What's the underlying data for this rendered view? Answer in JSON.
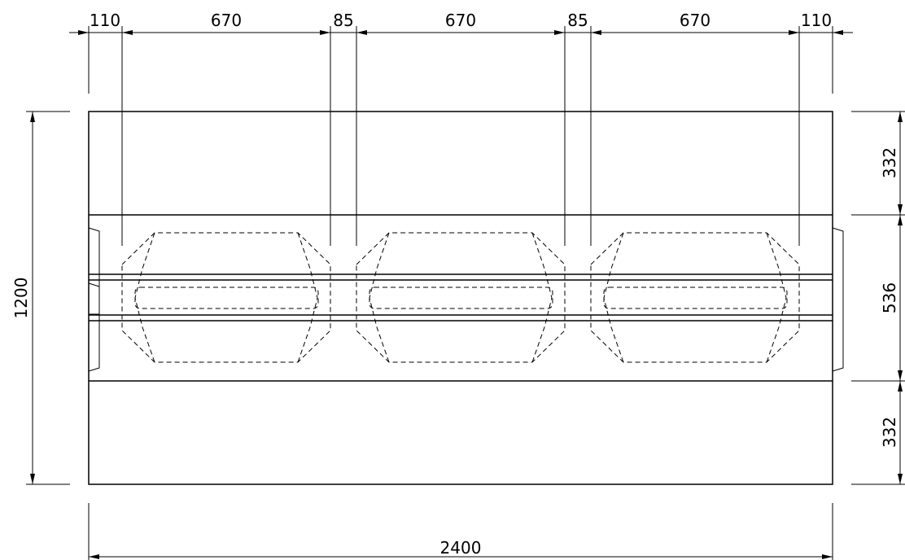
{
  "top_dimensions": {
    "left_end": "110",
    "seg_1": "670",
    "gap_1": "85",
    "seg_2": "670",
    "gap_2": "85",
    "seg_3": "670",
    "right_end": "110"
  },
  "side_dimensions": {
    "top_band": "332",
    "middle_band": "536",
    "bottom_band": "332"
  },
  "overall": {
    "height": "1200",
    "width": "2400"
  }
}
